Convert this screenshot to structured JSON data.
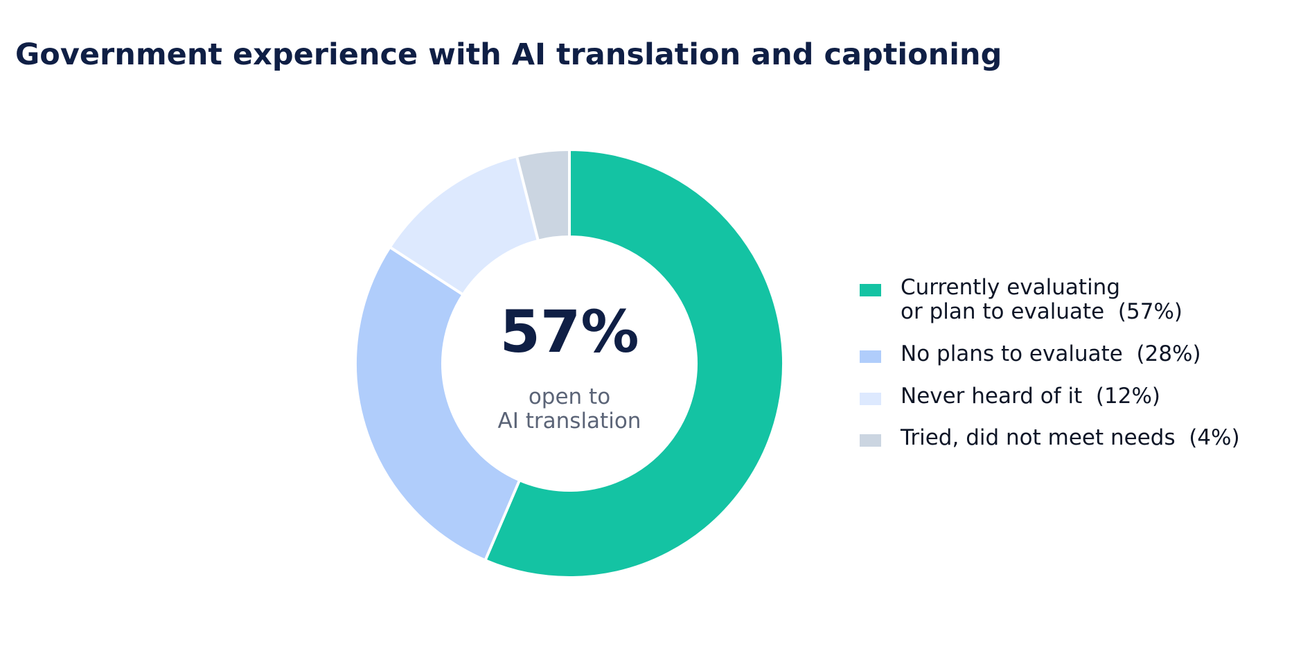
{
  "chart_data": {
    "type": "pie",
    "variant": "donut",
    "title": "Government experience with AI translation and captioning",
    "center_value": "57%",
    "center_label": "open to\nAI translation",
    "slices": [
      {
        "label": "Currently evaluating\nor plan to evaluate  (57%)",
        "value": 57,
        "color": "#14c3a3"
      },
      {
        "label": "No plans to evaluate  (28%)",
        "value": 28,
        "color": "#b0cdfb"
      },
      {
        "label": "Never heard of it  (12%)",
        "value": 12,
        "color": "#dde9fe"
      },
      {
        "label": "Tried, did not meet needs  (4%)",
        "value": 4,
        "color": "#cbd5e1"
      }
    ],
    "legend_position": "right",
    "colors": {
      "title": "#0f1f45",
      "center_value": "#0f1f45",
      "center_label": "#5b6477",
      "legend_text": "#0d1526"
    }
  }
}
